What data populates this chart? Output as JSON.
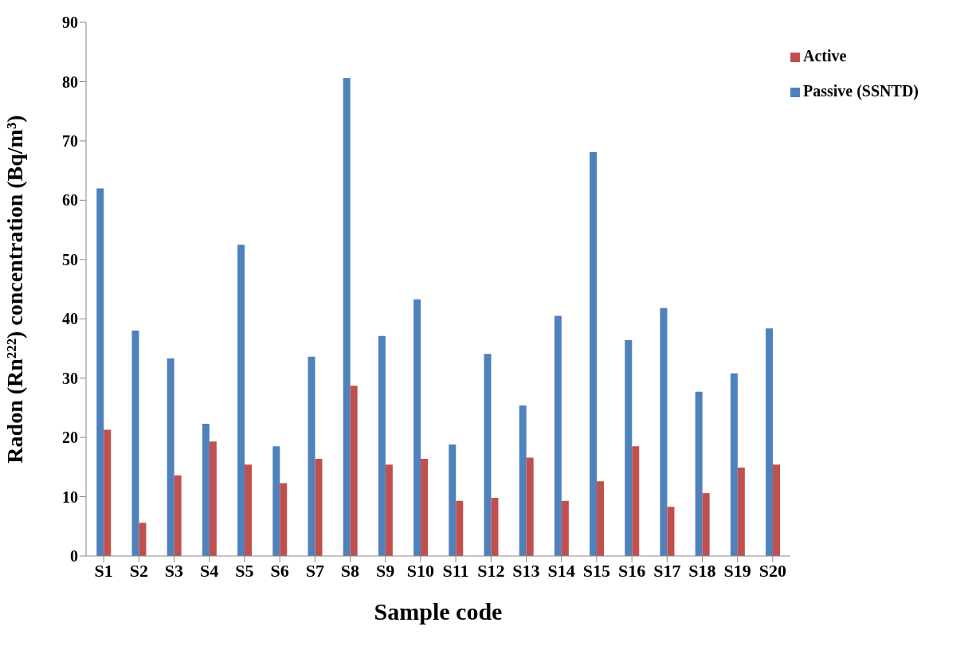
{
  "chart_data": {
    "type": "bar",
    "xlabel": "Sample code",
    "ylabel": "Radon (Rn²²²) concentration (Bq/m³)",
    "categories": [
      "S1",
      "S2",
      "S3",
      "S4",
      "S5",
      "S6",
      "S7",
      "S8",
      "S9",
      "S10",
      "S11",
      "S12",
      "S13",
      "S14",
      "S15",
      "S16",
      "S17",
      "S18",
      "S19",
      "S20"
    ],
    "series": [
      {
        "name": "Passive (SSNTD)",
        "color": "#4f81bd",
        "values": [
          62,
          38,
          33.3,
          22.3,
          52.5,
          18.5,
          33.6,
          80.6,
          37.1,
          43.3,
          18.8,
          34.1,
          25.4,
          40.5,
          68.1,
          36.4,
          41.8,
          27.7,
          30.8,
          38.4
        ]
      },
      {
        "name": "Active",
        "color": "#c0504d",
        "values": [
          21.3,
          5.6,
          13.6,
          19.3,
          15.4,
          12.3,
          16.4,
          28.7,
          15.4,
          16.4,
          9.3,
          9.8,
          16.6,
          9.3,
          12.6,
          18.5,
          8.3,
          10.6,
          14.9,
          15.4
        ]
      }
    ],
    "ylim": [
      0,
      90
    ],
    "yticks": [
      0,
      10,
      20,
      30,
      40,
      50,
      60,
      70,
      80,
      90
    ],
    "grid": false,
    "legend": "top right"
  }
}
